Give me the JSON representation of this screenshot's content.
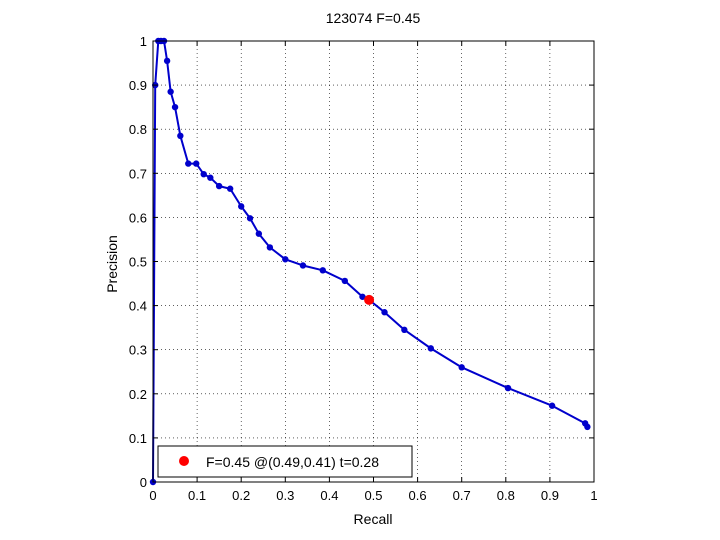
{
  "chart_data": {
    "type": "line",
    "title": "123074 F=0.45",
    "xlabel": "Recall",
    "ylabel": "Precision",
    "xlim": [
      0,
      1
    ],
    "ylim": [
      0,
      1
    ],
    "grid": true,
    "legend_position": "bottom-left",
    "x_ticks": [
      0,
      0.1,
      0.2,
      0.3,
      0.4,
      0.5,
      0.6,
      0.7,
      0.8,
      0.9,
      1
    ],
    "x_tick_labels": [
      "0",
      "0.1",
      "0.2",
      "0.3",
      "0.4",
      "0.5",
      "0.6",
      "0.7",
      "0.8",
      "0.9",
      "1"
    ],
    "y_ticks": [
      0,
      0.1,
      0.2,
      0.3,
      0.4,
      0.5,
      0.6,
      0.7,
      0.8,
      0.9,
      1
    ],
    "y_tick_labels": [
      "0",
      "0.1",
      "0.2",
      "0.3",
      "0.4",
      "0.5",
      "0.6",
      "0.7",
      "0.8",
      "0.9",
      "1"
    ],
    "series": [
      {
        "color": "#0000cc",
        "marker": "dot",
        "x": [
          0.0,
          0.005,
          0.012,
          0.018,
          0.025,
          0.032,
          0.04,
          0.05,
          0.062,
          0.08,
          0.098,
          0.115,
          0.13,
          0.15,
          0.175,
          0.2,
          0.22,
          0.24,
          0.265,
          0.3,
          0.34,
          0.385,
          0.435,
          0.475,
          0.49,
          0.525,
          0.57,
          0.63,
          0.7,
          0.805,
          0.905,
          0.98,
          0.985
        ],
        "y": [
          0.0,
          0.9,
          1.0,
          1.0,
          1.0,
          0.955,
          0.885,
          0.85,
          0.785,
          0.722,
          0.722,
          0.698,
          0.69,
          0.671,
          0.665,
          0.625,
          0.598,
          0.563,
          0.532,
          0.505,
          0.491,
          0.48,
          0.456,
          0.42,
          0.413,
          0.385,
          0.345,
          0.303,
          0.26,
          0.213,
          0.173,
          0.133,
          0.125
        ]
      }
    ],
    "highlight_point": {
      "x": 0.49,
      "y": 0.413,
      "color": "#ff0000"
    },
    "legend": {
      "label": "F=0.45 @(0.49,0.41) t=0.28",
      "marker_color": "#ff0000"
    }
  }
}
